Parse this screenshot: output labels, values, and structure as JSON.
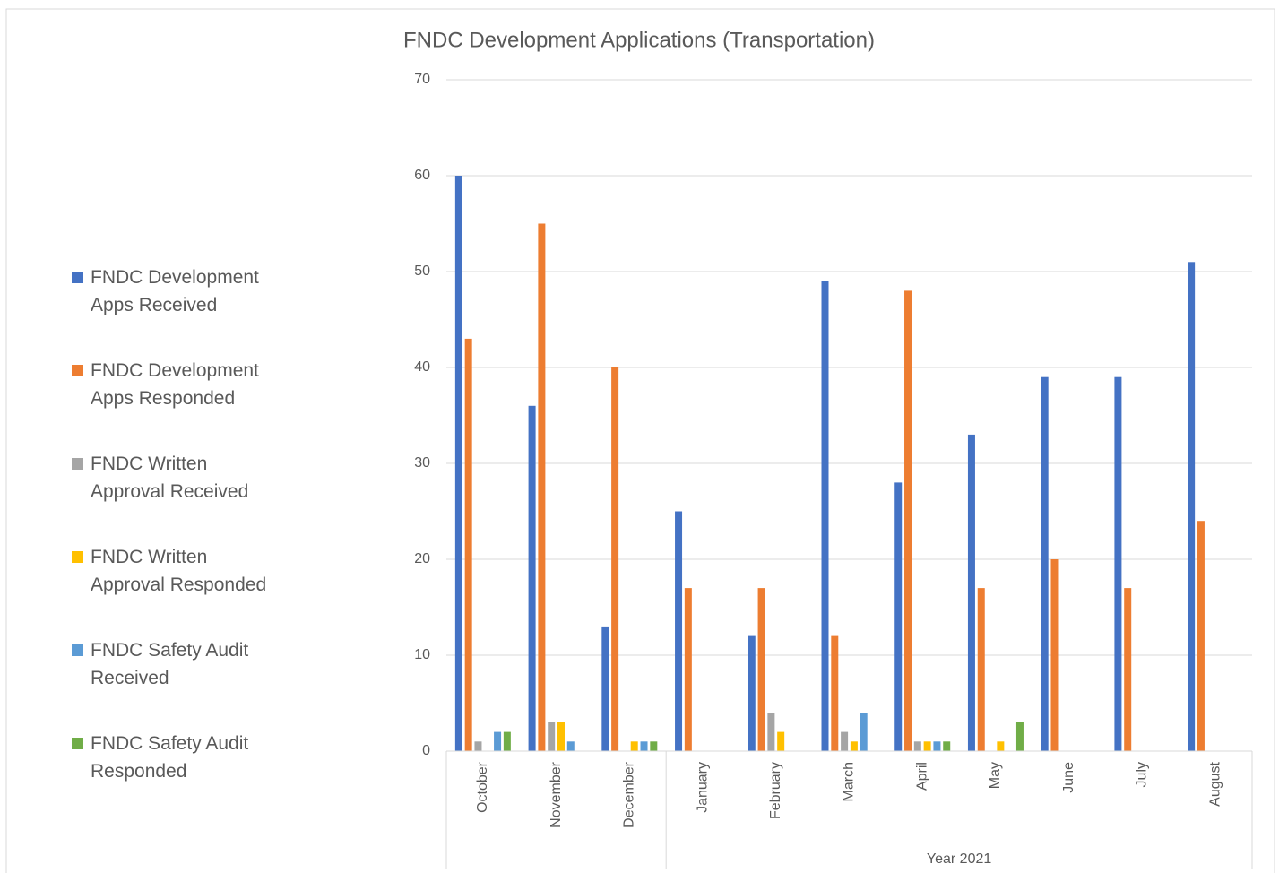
{
  "chart_data": {
    "type": "bar",
    "title": "FNDC Development Applications (Transportation)",
    "categories": [
      "October",
      "November",
      "December",
      "January",
      "February",
      "March",
      "April",
      "May",
      "June",
      "July",
      "August"
    ],
    "category_groups": [
      {
        "label": "Year 2021",
        "from": 3,
        "to": 10
      }
    ],
    "series": [
      {
        "name": "FNDC Development Apps Received",
        "color": "#4472c4",
        "values": [
          60,
          36,
          13,
          25,
          12,
          49,
          28,
          33,
          39,
          39,
          51
        ]
      },
      {
        "name": "FNDC Development Apps Responded",
        "color": "#ed7d31",
        "values": [
          43,
          55,
          40,
          17,
          17,
          12,
          48,
          17,
          20,
          17,
          24
        ]
      },
      {
        "name": "FNDC Written Approval Received",
        "color": "#a5a5a5",
        "values": [
          1,
          3,
          0,
          0,
          4,
          2,
          1,
          0,
          0,
          0,
          0
        ]
      },
      {
        "name": "FNDC Written Approval Responded",
        "color": "#ffc000",
        "values": [
          0,
          3,
          1,
          0,
          2,
          1,
          1,
          1,
          0,
          0,
          0
        ]
      },
      {
        "name": "FNDC Safety Audit Received",
        "color": "#5b9bd5",
        "values": [
          2,
          1,
          1,
          0,
          0,
          4,
          1,
          0,
          0,
          0,
          0
        ]
      },
      {
        "name": "FNDC Safety Audit Responded",
        "color": "#70ad47",
        "values": [
          2,
          0,
          1,
          0,
          0,
          0,
          1,
          3,
          0,
          0,
          0
        ]
      }
    ],
    "ylim": [
      0,
      70
    ],
    "yticks": [
      0,
      10,
      20,
      30,
      40,
      50,
      60,
      70
    ],
    "grid": true,
    "legend": "left"
  }
}
